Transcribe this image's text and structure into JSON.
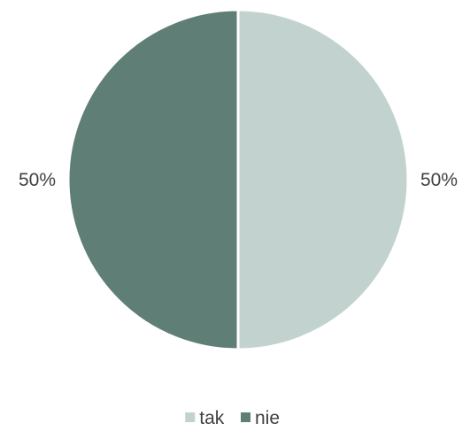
{
  "chart_data": {
    "type": "pie",
    "categories": [
      "tak",
      "nie"
    ],
    "values": [
      50,
      50
    ],
    "data_labels": [
      "50%",
      "50%"
    ],
    "colors": [
      "#c2d3cf",
      "#5f7f76"
    ],
    "legend": {
      "position": "bottom",
      "entries": [
        "tak",
        "nie"
      ]
    },
    "title": ""
  }
}
